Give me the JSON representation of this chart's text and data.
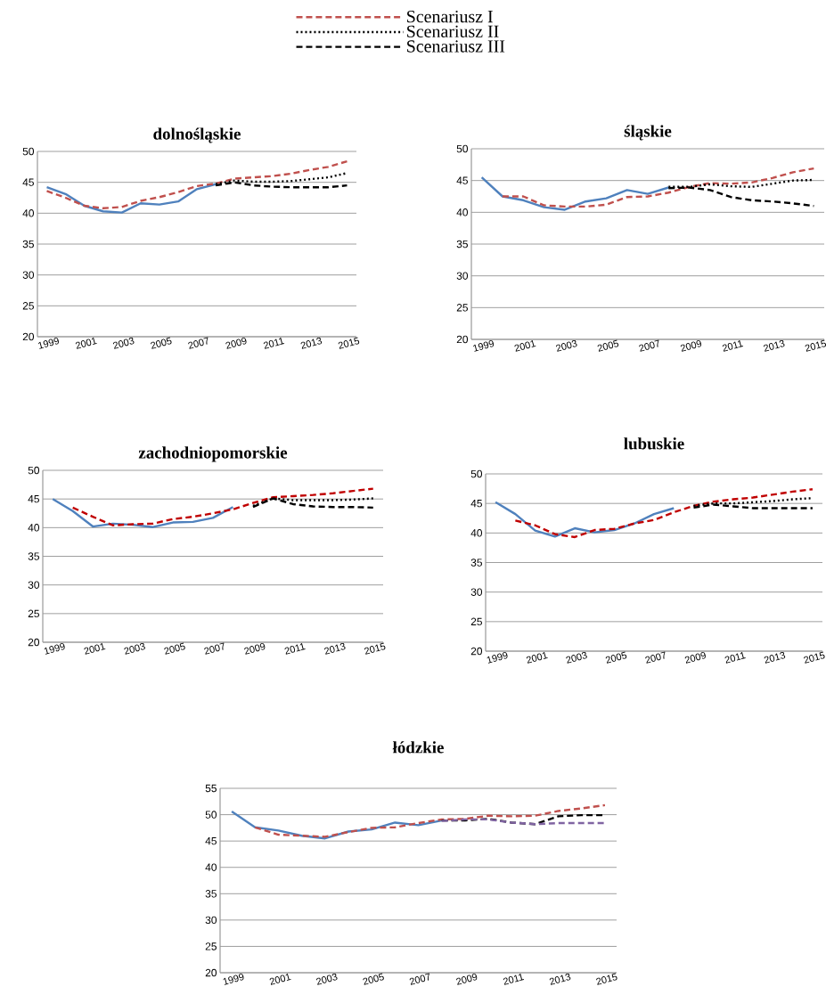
{
  "chart_data": [
    {
      "type": "line",
      "title": "dolnośląskie",
      "legend": "top",
      "grid": "y",
      "categories": [
        "1999",
        null,
        "2001",
        null,
        "2003",
        null,
        "2005",
        null,
        "2007",
        null,
        "2009",
        null,
        "2011",
        null,
        "2013",
        null,
        "2015"
      ],
      "ylim": [
        20,
        50
      ],
      "yticks": [
        20,
        25,
        30,
        35,
        40,
        45,
        50
      ],
      "series": [
        {
          "color": "#4f81bd",
          "line_style": "solid",
          "values": [
            44.2,
            43.1,
            41.2,
            40.3,
            40.1,
            41.6,
            41.4,
            41.9,
            43.9,
            44.7,
            null,
            null,
            null,
            null,
            null,
            null,
            null
          ]
        },
        {
          "name": "Scenariusz I",
          "color": "#c0504d",
          "line_style": "dashed",
          "values": [
            43.6,
            42.5,
            41.2,
            40.8,
            41.0,
            42.0,
            42.6,
            43.4,
            44.4,
            44.8,
            45.6,
            45.8,
            46.0,
            46.4,
            47.0,
            47.5,
            48.4
          ]
        },
        {
          "name": "Scenariusz II",
          "color": "#000000",
          "line_style": "dotted",
          "values": [
            null,
            null,
            null,
            null,
            null,
            null,
            null,
            null,
            null,
            44.7,
            45.3,
            45.1,
            45.1,
            45.2,
            45.5,
            45.8,
            46.5
          ]
        },
        {
          "name": "Scenariusz III",
          "color": "#000000",
          "line_style": "dashed",
          "values": [
            null,
            null,
            null,
            null,
            null,
            null,
            null,
            null,
            null,
            44.5,
            45.0,
            44.5,
            44.3,
            44.2,
            44.2,
            44.2,
            44.5
          ]
        }
      ]
    },
    {
      "type": "line",
      "title": "śląskie",
      "grid": "y",
      "categories": [
        "1999",
        null,
        "2001",
        null,
        "2003",
        null,
        "2005",
        null,
        "2007",
        null,
        "2009",
        null,
        "2011",
        null,
        "2013",
        null,
        "2015"
      ],
      "ylim": [
        20,
        50
      ],
      "yticks": [
        20,
        25,
        30,
        35,
        40,
        45,
        50
      ],
      "series": [
        {
          "color": "#4f81bd",
          "line_style": "solid",
          "values": [
            45.5,
            42.5,
            41.9,
            40.8,
            40.4,
            41.7,
            42.2,
            43.5,
            42.9,
            43.9,
            null,
            null,
            null,
            null,
            null,
            null,
            null
          ]
        },
        {
          "color": "#c0504d",
          "line_style": "dashed",
          "values": [
            null,
            42.5,
            42.5,
            41.1,
            40.9,
            40.9,
            41.2,
            42.4,
            42.5,
            43.1,
            44.0,
            44.6,
            44.5,
            44.7,
            45.4,
            46.3,
            46.9
          ]
        },
        {
          "color": "#000000",
          "line_style": "dotted",
          "values": [
            null,
            null,
            null,
            null,
            null,
            null,
            null,
            null,
            null,
            44.0,
            44.0,
            44.4,
            44.1,
            44.0,
            44.5,
            45.0,
            45.1
          ]
        },
        {
          "color": "#000000",
          "line_style": "dashed",
          "values": [
            null,
            null,
            null,
            null,
            null,
            null,
            null,
            null,
            null,
            43.8,
            43.9,
            43.5,
            42.4,
            41.9,
            41.7,
            41.4,
            41.0
          ]
        }
      ]
    },
    {
      "type": "line",
      "title": "zachodniopomorskie",
      "grid": "y",
      "categories": [
        "1999",
        null,
        "2001",
        null,
        "2003",
        null,
        "2005",
        null,
        "2007",
        null,
        "2009",
        null,
        "2011",
        null,
        "2013",
        null,
        "2015"
      ],
      "ylim": [
        20,
        50
      ],
      "yticks": [
        20,
        25,
        30,
        35,
        40,
        45,
        50
      ],
      "series": [
        {
          "color": "#4f81bd",
          "line_style": "solid",
          "values": [
            45.0,
            42.9,
            40.2,
            40.7,
            40.5,
            40.1,
            40.9,
            41.0,
            41.7,
            43.6,
            null,
            null,
            null,
            null,
            null,
            null,
            null
          ]
        },
        {
          "color": "#c00000",
          "line_style": "dashed",
          "values": [
            null,
            43.5,
            41.9,
            40.4,
            40.6,
            40.7,
            41.5,
            41.9,
            42.5,
            43.2,
            44.3,
            45.3,
            45.5,
            45.7,
            46.0,
            46.4,
            46.8
          ]
        },
        {
          "color": "#000000",
          "line_style": "dotted",
          "values": [
            null,
            null,
            null,
            null,
            null,
            null,
            null,
            null,
            null,
            null,
            43.8,
            45.1,
            44.8,
            44.8,
            44.8,
            44.9,
            45.1
          ]
        },
        {
          "color": "#000000",
          "line_style": "dashed",
          "values": [
            null,
            null,
            null,
            null,
            null,
            null,
            null,
            null,
            null,
            null,
            43.6,
            45.1,
            44.1,
            43.7,
            43.6,
            43.6,
            43.5
          ]
        }
      ]
    },
    {
      "type": "line",
      "title": "lubuskie",
      "grid": "y",
      "categories": [
        "1999",
        null,
        "2001",
        null,
        "2003",
        null,
        "2005",
        null,
        "2007",
        null,
        "2009",
        null,
        "2011",
        null,
        "2013",
        null,
        "2015"
      ],
      "ylim": [
        20,
        50
      ],
      "yticks": [
        20,
        25,
        30,
        35,
        40,
        45,
        50
      ],
      "series": [
        {
          "color": "#4f81bd",
          "line_style": "solid",
          "values": [
            45.2,
            43.2,
            40.4,
            39.4,
            40.8,
            40.1,
            40.5,
            41.6,
            43.2,
            44.2,
            null,
            null,
            null,
            null,
            null,
            null,
            null
          ]
        },
        {
          "color": "#c00000",
          "line_style": "dashed",
          "values": [
            null,
            42.1,
            41.3,
            39.8,
            39.3,
            40.5,
            40.7,
            41.6,
            42.2,
            43.5,
            44.6,
            45.3,
            45.7,
            46.0,
            46.5,
            47.0,
            47.4
          ]
        },
        {
          "color": "#000000",
          "line_style": "dotted",
          "values": [
            null,
            null,
            null,
            null,
            null,
            null,
            null,
            null,
            null,
            null,
            44.6,
            45.0,
            45.0,
            45.2,
            45.4,
            45.7,
            45.9
          ]
        },
        {
          "color": "#000000",
          "line_style": "dashed",
          "values": [
            null,
            null,
            null,
            null,
            null,
            null,
            null,
            null,
            null,
            null,
            44.3,
            44.8,
            44.5,
            44.2,
            44.2,
            44.2,
            44.2
          ]
        }
      ]
    },
    {
      "type": "line",
      "title": "łódzkie",
      "grid": "y",
      "categories": [
        "1999",
        null,
        "2001",
        null,
        "2003",
        null,
        "2005",
        null,
        "2007",
        null,
        "2009",
        null,
        "2011",
        null,
        "2013",
        null,
        "2015"
      ],
      "ylim": [
        20,
        55
      ],
      "yticks": [
        20,
        25,
        30,
        35,
        40,
        45,
        50,
        55
      ],
      "series": [
        {
          "color": "#4f81bd",
          "line_style": "solid",
          "values": [
            50.6,
            47.6,
            47.0,
            46.0,
            45.5,
            46.8,
            47.2,
            48.5,
            48.0,
            48.9,
            null,
            null,
            null,
            null,
            null,
            null,
            null
          ]
        },
        {
          "color": "#c0504d",
          "line_style": "dashed",
          "values": [
            null,
            47.6,
            46.2,
            46.0,
            45.8,
            46.7,
            47.5,
            47.6,
            48.4,
            49.1,
            49.2,
            49.8,
            49.7,
            49.8,
            50.7,
            51.2,
            51.8
          ]
        },
        {
          "color": "#000000",
          "line_style": "dashed",
          "values": [
            null,
            null,
            null,
            null,
            null,
            null,
            null,
            null,
            null,
            48.9,
            48.9,
            49.2,
            48.5,
            48.2,
            49.7,
            49.9,
            49.9
          ]
        },
        {
          "color": "#8064a2",
          "line_style": "dashed",
          "values": [
            null,
            null,
            null,
            null,
            null,
            null,
            null,
            null,
            null,
            48.8,
            49.1,
            49.1,
            48.5,
            48.2,
            48.4,
            48.4,
            48.4
          ]
        }
      ]
    }
  ]
}
